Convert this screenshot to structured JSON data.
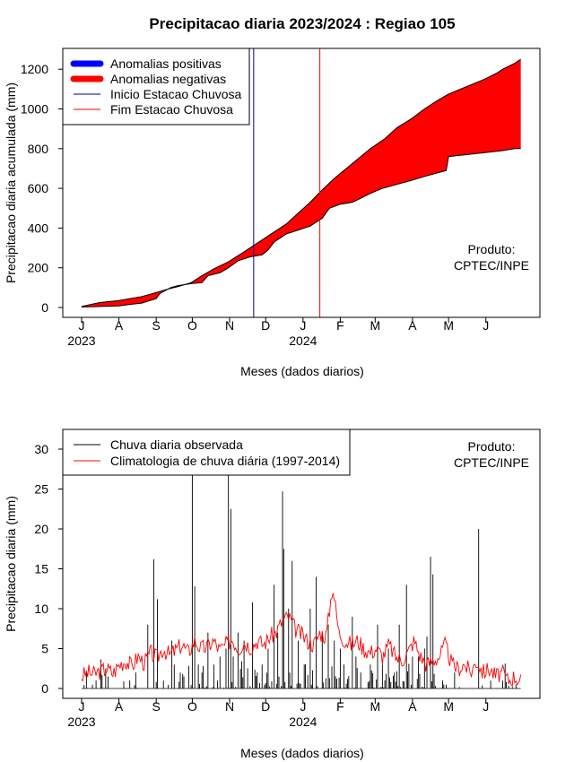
{
  "title": "Precipitacao diaria 2023/2024 : Regiao 105",
  "product_label": [
    "Produto:",
    "CPTEC/INPE"
  ],
  "colors": {
    "positive_anomaly": "#0000ff",
    "negative_anomaly": "#ff0000",
    "season_start": "#00008b",
    "season_end": "#ff0000",
    "observed": "#000000",
    "climatology": "#ff0000"
  },
  "chart_data": [
    {
      "type": "area",
      "name": "accumulated",
      "ylabel": "Precipitacao diaria acumulada (mm)",
      "xlabel": "Meses (dados diarios)",
      "ylim": [
        0,
        1250
      ],
      "yticks": [
        0,
        200,
        400,
        600,
        800,
        1000,
        1200
      ],
      "month_ticks": [
        "J",
        "A",
        "S",
        "O",
        "N",
        "D",
        "J",
        "F",
        "M",
        "A",
        "M",
        "J"
      ],
      "year_labels": [
        "2023",
        "2024"
      ],
      "legend": {
        "position": "top-left",
        "entries": [
          "Anomalias positivas",
          "Anomalias negativas",
          "Inicio Estacao Chuvosa",
          "Fim Estacao Chuvosa"
        ]
      },
      "season_start_day": 143,
      "season_end_day": 198,
      "observed_cumulative": [
        [
          0,
          2
        ],
        [
          15,
          5
        ],
        [
          31,
          8
        ],
        [
          40,
          15
        ],
        [
          50,
          22
        ],
        [
          62,
          45
        ],
        [
          65,
          70
        ],
        [
          74,
          100
        ],
        [
          80,
          110
        ],
        [
          91,
          120
        ],
        [
          100,
          125
        ],
        [
          105,
          160
        ],
        [
          115,
          175
        ],
        [
          122,
          200
        ],
        [
          130,
          235
        ],
        [
          140,
          255
        ],
        [
          150,
          265
        ],
        [
          155,
          290
        ],
        [
          160,
          330
        ],
        [
          170,
          370
        ],
        [
          180,
          390
        ],
        [
          190,
          410
        ],
        [
          200,
          450
        ],
        [
          206,
          500
        ],
        [
          215,
          520
        ],
        [
          225,
          530
        ],
        [
          232,
          550
        ],
        [
          240,
          575
        ],
        [
          250,
          600
        ],
        [
          262,
          620
        ],
        [
          274,
          640
        ],
        [
          285,
          660
        ],
        [
          294,
          675
        ],
        [
          303,
          690
        ],
        [
          305,
          760
        ],
        [
          320,
          770
        ],
        [
          335,
          780
        ],
        [
          350,
          790
        ],
        [
          360,
          800
        ],
        [
          365,
          800
        ]
      ],
      "climatology_cumulative": [
        [
          0,
          5
        ],
        [
          15,
          25
        ],
        [
          31,
          35
        ],
        [
          50,
          55
        ],
        [
          62,
          75
        ],
        [
          70,
          90
        ],
        [
          80,
          105
        ],
        [
          91,
          125
        ],
        [
          100,
          160
        ],
        [
          110,
          195
        ],
        [
          122,
          230
        ],
        [
          135,
          280
        ],
        [
          150,
          340
        ],
        [
          160,
          380
        ],
        [
          170,
          420
        ],
        [
          180,
          475
        ],
        [
          190,
          530
        ],
        [
          198,
          580
        ],
        [
          210,
          650
        ],
        [
          220,
          700
        ],
        [
          230,
          750
        ],
        [
          240,
          800
        ],
        [
          252,
          850
        ],
        [
          262,
          905
        ],
        [
          274,
          950
        ],
        [
          285,
          1000
        ],
        [
          295,
          1040
        ],
        [
          305,
          1075
        ],
        [
          315,
          1100
        ],
        [
          325,
          1125
        ],
        [
          335,
          1150
        ],
        [
          345,
          1180
        ],
        [
          350,
          1200
        ],
        [
          360,
          1230
        ],
        [
          365,
          1250
        ]
      ]
    },
    {
      "type": "line",
      "name": "daily",
      "ylabel": "Precipitacao diaria (mm)",
      "xlabel": "Meses (dados diarios)",
      "ylim": [
        0,
        30
      ],
      "yticks": [
        0,
        5,
        10,
        15,
        20,
        25,
        30
      ],
      "month_ticks": [
        "J",
        "A",
        "S",
        "O",
        "N",
        "D",
        "J",
        "F",
        "M",
        "A",
        "M",
        "J"
      ],
      "year_labels": [
        "2023",
        "2024"
      ],
      "legend": {
        "position": "top-left",
        "entries": [
          "Chuva diaria observada",
          "Climatologia de chuva diária (1997-2014)"
        ]
      },
      "observed_peaks": [
        [
          12,
          1
        ],
        [
          20,
          2.5
        ],
        [
          22,
          1.5
        ],
        [
          40,
          1
        ],
        [
          45,
          2
        ],
        [
          55,
          8
        ],
        [
          60,
          16.2
        ],
        [
          63,
          11.2
        ],
        [
          68,
          1
        ],
        [
          75,
          6
        ],
        [
          77,
          3
        ],
        [
          82,
          2
        ],
        [
          85,
          1.5
        ],
        [
          92,
          29
        ],
        [
          94,
          12.8
        ],
        [
          97,
          3
        ],
        [
          100,
          2
        ],
        [
          105,
          7
        ],
        [
          110,
          3
        ],
        [
          115,
          4
        ],
        [
          120,
          5
        ],
        [
          122,
          29
        ],
        [
          124,
          22.5
        ],
        [
          126,
          4
        ],
        [
          130,
          7
        ],
        [
          135,
          6
        ],
        [
          142,
          10.8
        ],
        [
          146,
          2
        ],
        [
          150,
          3
        ],
        [
          155,
          5
        ],
        [
          160,
          13
        ],
        [
          163,
          7
        ],
        [
          167,
          24.7
        ],
        [
          168,
          17.5
        ],
        [
          172,
          10
        ],
        [
          175,
          16
        ],
        [
          180,
          6
        ],
        [
          185,
          3
        ],
        [
          190,
          10
        ],
        [
          195,
          14
        ],
        [
          200,
          7
        ],
        [
          205,
          8
        ],
        [
          210,
          6
        ],
        [
          215,
          5
        ],
        [
          218,
          3
        ],
        [
          225,
          9
        ],
        [
          228,
          4
        ],
        [
          232,
          2
        ],
        [
          240,
          3
        ],
        [
          246,
          8
        ],
        [
          250,
          3
        ],
        [
          255,
          5
        ],
        [
          260,
          2
        ],
        [
          264,
          8
        ],
        [
          270,
          13
        ],
        [
          275,
          4
        ],
        [
          280,
          4
        ],
        [
          285,
          5
        ],
        [
          287,
          6.5
        ],
        [
          290,
          16.5
        ],
        [
          292,
          14.3
        ],
        [
          300,
          1
        ],
        [
          310,
          2
        ],
        [
          330,
          20
        ],
        [
          340,
          1
        ],
        [
          350,
          1
        ]
      ],
      "climatology": [
        1.5,
        2,
        1.8,
        2.2,
        2.5,
        1.9,
        3,
        3.5,
        2.8,
        4,
        3.2,
        4.5,
        3.8,
        5,
        4.2,
        4.8,
        5.5,
        4.5,
        6,
        5,
        5.2,
        6,
        4.8,
        5.5,
        6.2,
        5,
        5.8,
        5.2,
        6,
        5.5,
        6.5,
        7,
        8.5,
        9,
        7.5,
        6.8,
        6,
        5.5,
        7,
        6.5,
        13,
        7,
        6,
        5.5,
        6,
        5,
        4.5,
        5,
        4,
        5.5,
        4,
        3.5,
        4.5,
        6,
        4,
        3,
        3.5,
        4,
        5.5,
        3,
        2.5,
        3,
        2,
        3.5,
        2,
        2.5,
        1.5,
        2,
        1,
        1.5,
        1
      ]
    }
  ],
  "product_label_2": [
    "Produto:",
    "CPTEC/INPE"
  ]
}
